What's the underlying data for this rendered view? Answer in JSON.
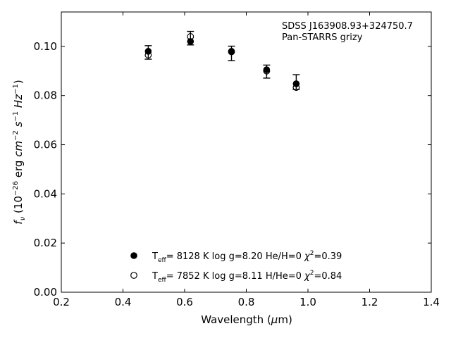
{
  "chart_data": {
    "type": "scatter",
    "xlabel": "Wavelength (μm)",
    "ylabel": "f_ν (10^-26 erg cm^-2 s^-1 Hz^-1)",
    "xlim": [
      0.2,
      1.4
    ],
    "ylim": [
      0.0,
      0.114
    ],
    "xticks": [
      "0.2",
      "0.4",
      "0.6",
      "0.8",
      "1.0",
      "1.2",
      "1.4"
    ],
    "yticks": [
      "0.00",
      "0.02",
      "0.04",
      "0.06",
      "0.08",
      "0.10"
    ],
    "grid": false,
    "legend_position": "bottom-center",
    "annotations": [
      "SDSS J163908.93+324750.7",
      "Pan-STARRS grizy"
    ],
    "observed": {
      "x": [
        0.482,
        0.619,
        0.752,
        0.866,
        0.962
      ],
      "y": [
        0.0975,
        0.1035,
        0.0972,
        0.0898,
        0.0845
      ],
      "yerr_low": [
        0.0948,
        0.1006,
        0.0942,
        0.0871,
        0.0825
      ],
      "yerr_high": [
        0.1003,
        0.1061,
        0.1001,
        0.0924,
        0.0885
      ]
    },
    "series": [
      {
        "name": "Teff= 8128 K log g=8.20 He/H=0 χ²=0.39",
        "marker": "filled-circle",
        "x": [
          0.482,
          0.619,
          0.752,
          0.866,
          0.962
        ],
        "y": [
          0.098,
          0.102,
          0.098,
          0.0905,
          0.0848
        ]
      },
      {
        "name": "Teff= 7852 K log g=8.11 H/He=0 χ²=0.84",
        "marker": "open-circle",
        "x": [
          0.482,
          0.619,
          0.752,
          0.866,
          0.962
        ],
        "y": [
          0.0965,
          0.104,
          0.0978,
          0.09,
          0.0833
        ]
      }
    ],
    "legend": [
      {
        "teff": "8128 K",
        "logg": "log g=8.20",
        "comp_label": "He/H=0",
        "chi2": "=0.39"
      },
      {
        "teff": "7852 K",
        "logg": "log g=8.11",
        "comp_label": "H/He=0",
        "chi2": "=0.84"
      }
    ],
    "colors": {
      "marker": "#000000",
      "axis": "#000000"
    }
  }
}
